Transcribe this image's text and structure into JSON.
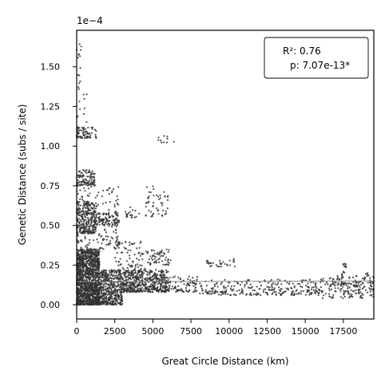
{
  "chart_data": {
    "type": "scatter",
    "xlabel": "Great Circle Distance (km)",
    "ylabel": "Genetic Distance (subs / site)",
    "y_offset_label": "1e−4",
    "xlim": [
      0,
      19500
    ],
    "ylim": [
      -0.09,
      1.73
    ],
    "x_ticks": [
      0,
      2500,
      5000,
      7500,
      10000,
      12500,
      15000,
      17500
    ],
    "x_tick_labels": [
      "0",
      "2500",
      "5000",
      "7500",
      "10000",
      "12500",
      "15000",
      "17500"
    ],
    "y_ticks": [
      0.0,
      0.25,
      0.5,
      0.75,
      1.0,
      1.25,
      1.5
    ],
    "y_tick_labels": [
      "0.00",
      "0.25",
      "0.50",
      "0.75",
      "1.00",
      "1.25",
      "1.50"
    ],
    "trend_line": {
      "x": [
        0,
        19500
      ],
      "y": [
        0.145,
        0.15
      ],
      "color": "#888888"
    },
    "annotation": {
      "r2_text": "R²: 0.76",
      "p_text": "p: 7.07e-13*",
      "placement": "top-right"
    },
    "point_color": "#333333",
    "grid": false,
    "clusters": [
      {
        "x": [
          0,
          1500
        ],
        "y": [
          0.0,
          0.35
        ],
        "n": 1400
      },
      {
        "x": [
          1500,
          3000
        ],
        "y": [
          0.0,
          0.22
        ],
        "n": 450
      },
      {
        "x": [
          3000,
          6000
        ],
        "y": [
          0.08,
          0.22
        ],
        "n": 500
      },
      {
        "x": [
          0,
          1300
        ],
        "y": [
          0.45,
          0.65
        ],
        "n": 260
      },
      {
        "x": [
          0,
          1200
        ],
        "y": [
          0.75,
          0.85
        ],
        "n": 110
      },
      {
        "x": [
          0,
          1300
        ],
        "y": [
          1.05,
          1.12
        ],
        "n": 70
      },
      {
        "x": [
          1200,
          2800
        ],
        "y": [
          0.5,
          0.58
        ],
        "n": 90
      },
      {
        "x": [
          0,
          2800
        ],
        "y": [
          0.35,
          0.75
        ],
        "n": 160
      },
      {
        "x": [
          0,
          700
        ],
        "y": [
          1.15,
          1.65
        ],
        "n": 25
      },
      {
        "x": [
          2500,
          4500
        ],
        "y": [
          0.2,
          0.4
        ],
        "n": 90
      },
      {
        "x": [
          4500,
          6200
        ],
        "y": [
          0.25,
          0.35
        ],
        "n": 60
      },
      {
        "x": [
          4500,
          6000
        ],
        "y": [
          0.55,
          0.75
        ],
        "n": 50
      },
      {
        "x": [
          3200,
          4200
        ],
        "y": [
          0.55,
          0.62
        ],
        "n": 20
      },
      {
        "x": [
          5000,
          6500
        ],
        "y": [
          1.02,
          1.07
        ],
        "n": 10
      },
      {
        "x": [
          6000,
          8000
        ],
        "y": [
          0.08,
          0.18
        ],
        "n": 80
      },
      {
        "x": [
          8000,
          12000
        ],
        "y": [
          0.06,
          0.16
        ],
        "n": 120
      },
      {
        "x": [
          8500,
          10500
        ],
        "y": [
          0.24,
          0.29
        ],
        "n": 30
      },
      {
        "x": [
          12000,
          16000
        ],
        "y": [
          0.06,
          0.16
        ],
        "n": 140
      },
      {
        "x": [
          16000,
          19500
        ],
        "y": [
          0.04,
          0.17
        ],
        "n": 150
      },
      {
        "x": [
          17400,
          17700
        ],
        "y": [
          0.17,
          0.26
        ],
        "n": 15
      },
      {
        "x": [
          16500,
          19500
        ],
        "y": [
          0.12,
          0.2
        ],
        "n": 40
      }
    ]
  }
}
